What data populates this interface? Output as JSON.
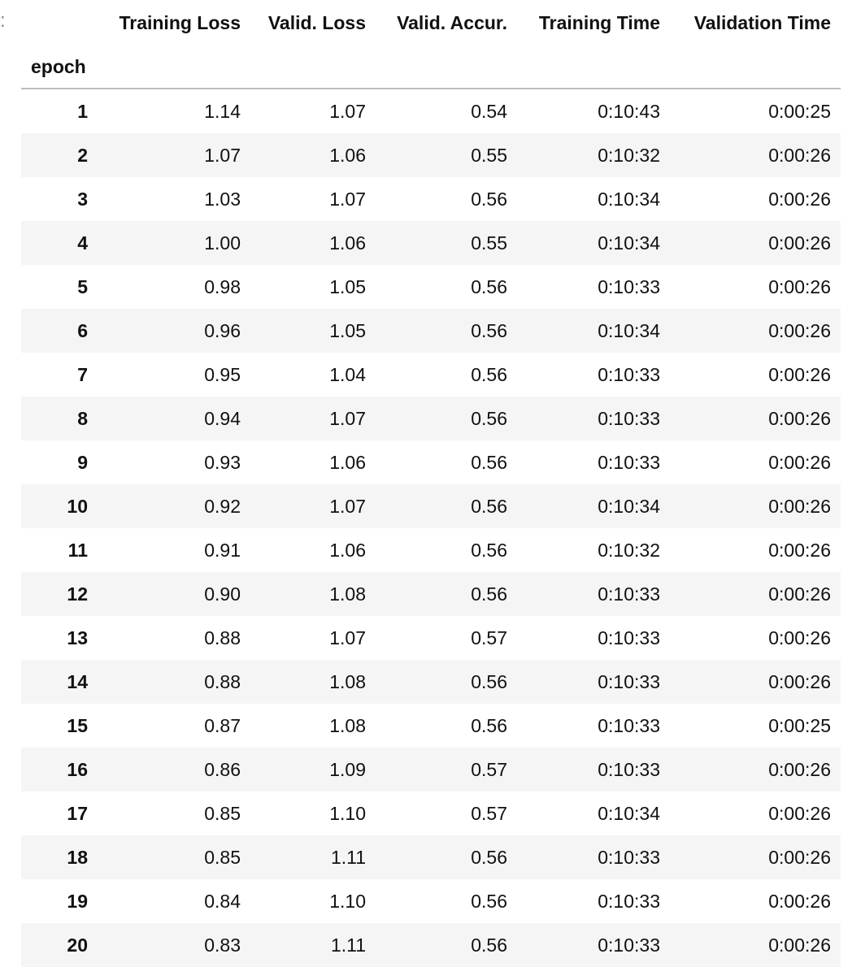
{
  "prompt_marker": ":",
  "table": {
    "columns": [
      "Training Loss",
      "Valid. Loss",
      "Valid. Accur.",
      "Training Time",
      "Validation Time"
    ],
    "index_name": "epoch",
    "rows": [
      {
        "epoch": "1",
        "cells": [
          "1.14",
          "1.07",
          "0.54",
          "0:10:43",
          "0:00:25"
        ]
      },
      {
        "epoch": "2",
        "cells": [
          "1.07",
          "1.06",
          "0.55",
          "0:10:32",
          "0:00:26"
        ]
      },
      {
        "epoch": "3",
        "cells": [
          "1.03",
          "1.07",
          "0.56",
          "0:10:34",
          "0:00:26"
        ]
      },
      {
        "epoch": "4",
        "cells": [
          "1.00",
          "1.06",
          "0.55",
          "0:10:34",
          "0:00:26"
        ]
      },
      {
        "epoch": "5",
        "cells": [
          "0.98",
          "1.05",
          "0.56",
          "0:10:33",
          "0:00:26"
        ]
      },
      {
        "epoch": "6",
        "cells": [
          "0.96",
          "1.05",
          "0.56",
          "0:10:34",
          "0:00:26"
        ]
      },
      {
        "epoch": "7",
        "cells": [
          "0.95",
          "1.04",
          "0.56",
          "0:10:33",
          "0:00:26"
        ]
      },
      {
        "epoch": "8",
        "cells": [
          "0.94",
          "1.07",
          "0.56",
          "0:10:33",
          "0:00:26"
        ]
      },
      {
        "epoch": "9",
        "cells": [
          "0.93",
          "1.06",
          "0.56",
          "0:10:33",
          "0:00:26"
        ]
      },
      {
        "epoch": "10",
        "cells": [
          "0.92",
          "1.07",
          "0.56",
          "0:10:34",
          "0:00:26"
        ]
      },
      {
        "epoch": "11",
        "cells": [
          "0.91",
          "1.06",
          "0.56",
          "0:10:32",
          "0:00:26"
        ]
      },
      {
        "epoch": "12",
        "cells": [
          "0.90",
          "1.08",
          "0.56",
          "0:10:33",
          "0:00:26"
        ]
      },
      {
        "epoch": "13",
        "cells": [
          "0.88",
          "1.07",
          "0.57",
          "0:10:33",
          "0:00:26"
        ]
      },
      {
        "epoch": "14",
        "cells": [
          "0.88",
          "1.08",
          "0.56",
          "0:10:33",
          "0:00:26"
        ]
      },
      {
        "epoch": "15",
        "cells": [
          "0.87",
          "1.08",
          "0.56",
          "0:10:33",
          "0:00:25"
        ]
      },
      {
        "epoch": "16",
        "cells": [
          "0.86",
          "1.09",
          "0.57",
          "0:10:33",
          "0:00:26"
        ]
      },
      {
        "epoch": "17",
        "cells": [
          "0.85",
          "1.10",
          "0.57",
          "0:10:34",
          "0:00:26"
        ]
      },
      {
        "epoch": "18",
        "cells": [
          "0.85",
          "1.11",
          "0.56",
          "0:10:33",
          "0:00:26"
        ]
      },
      {
        "epoch": "19",
        "cells": [
          "0.84",
          "1.10",
          "0.56",
          "0:10:33",
          "0:00:26"
        ]
      },
      {
        "epoch": "20",
        "cells": [
          "0.83",
          "1.11",
          "0.56",
          "0:10:33",
          "0:00:26"
        ]
      }
    ]
  }
}
